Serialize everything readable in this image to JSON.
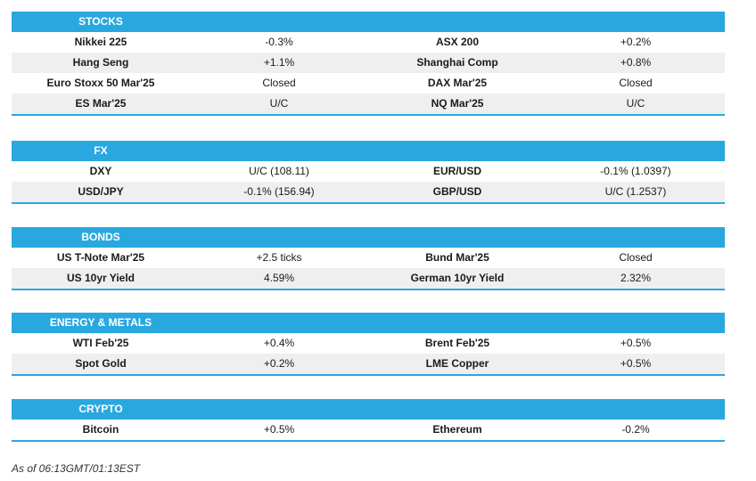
{
  "sections": [
    {
      "title": "STOCKS",
      "rows": [
        [
          "Nikkei 225",
          "-0.3%",
          "ASX 200",
          "+0.2%"
        ],
        [
          "Hang Seng",
          "+1.1%",
          "Shanghai Comp",
          "+0.8%"
        ],
        [
          "Euro Stoxx 50 Mar'25",
          "Closed",
          "DAX Mar'25",
          "Closed"
        ],
        [
          "ES Mar'25",
          "U/C",
          "NQ Mar'25",
          "U/C"
        ]
      ]
    },
    {
      "title": "FX",
      "rows": [
        [
          "DXY",
          "U/C (108.11)",
          "EUR/USD",
          "-0.1% (1.0397)"
        ],
        [
          "USD/JPY",
          "-0.1% (156.94)",
          "GBP/USD",
          "U/C (1.2537)"
        ]
      ]
    },
    {
      "title": "BONDS",
      "rows": [
        [
          "US T-Note Mar'25",
          "+2.5 ticks",
          "Bund Mar'25",
          "Closed"
        ],
        [
          "US 10yr Yield",
          "4.59%",
          "German 10yr Yield",
          "2.32%"
        ]
      ]
    },
    {
      "title": "ENERGY & METALS",
      "rows": [
        [
          "WTI Feb'25",
          "+0.4%",
          "Brent Feb'25",
          "+0.5%"
        ],
        [
          "Spot Gold",
          "+0.2%",
          "LME Copper",
          "+0.5%"
        ]
      ]
    },
    {
      "title": "CRYPTO",
      "rows": [
        [
          "Bitcoin",
          "+0.5%",
          "Ethereum",
          "-0.2%"
        ]
      ]
    }
  ],
  "footer": "As of 06:13GMT/01:13EST",
  "colors": {
    "header": "#29a8e0",
    "shade": "#efefef"
  }
}
